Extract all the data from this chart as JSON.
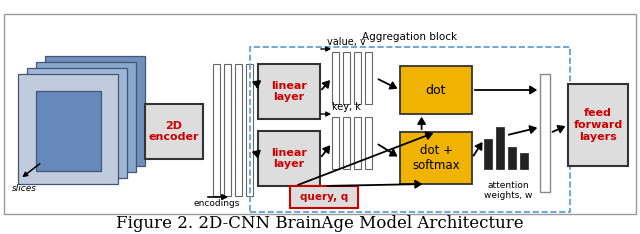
{
  "title": "Figure 2. 2D-CNN BrainAge Model Architecture",
  "title_fontsize": 12,
  "background_color": "#ffffff",
  "fig_width": 6.4,
  "fig_height": 2.34,
  "dpi": 100,
  "border_color": "#aaaaaa",
  "agg_label": "Aggregation block",
  "agg_ec": "#5599cc",
  "encodings_label": "encodings",
  "value_label": "value, v",
  "key_label": "key, k",
  "attention_label": "attention\nweights, w",
  "slices_label": "slices",
  "encoder_label": "2D\nencoder",
  "encoder_fc": "#dddddd",
  "encoder_ec": "#333333",
  "encoder_tc": "#cc0000",
  "ff_label": "feed\nforward\nlayers",
  "ff_fc": "#dddddd",
  "ff_ec": "#333333",
  "ff_tc": "#cc0000",
  "linear_label": "linear\nlayer",
  "linear_fc": "#dddddd",
  "linear_ec": "#333333",
  "linear_tc": "#cc0000",
  "dot_label": "dot",
  "dot_fc": "#f0b300",
  "dot_ec": "#333333",
  "dotsoftmax_label": "dot +\nsoftmax",
  "dotsoftmax_fc": "#f0b300",
  "dotsoftmax_ec": "#333333",
  "query_label": "query, q",
  "query_fc": "#dddddd",
  "query_ec": "#cc0000",
  "query_tc": "#cc0000"
}
